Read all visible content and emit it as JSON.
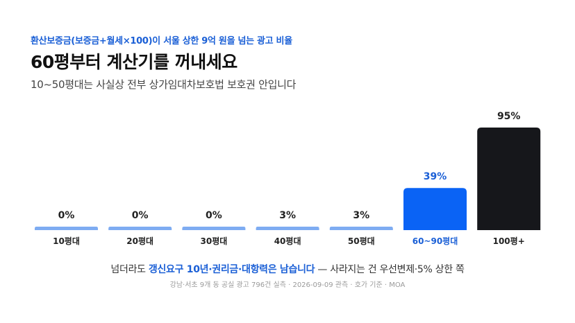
{
  "header": {
    "kicker": "환산보증금(보증금+월세×100)이 서울 상한 9억 원을 넘는 광고 비율",
    "title": "60평부터 계산기를 꺼내세요",
    "subtitle": "10~50평대는 사실상 전부 상가임대차보호법 보호권 안입니다"
  },
  "chart_data": {
    "type": "bar",
    "categories": [
      "10평대",
      "20평대",
      "30평대",
      "40평대",
      "50평대",
      "60~90평대",
      "100평+"
    ],
    "values": [
      0,
      0,
      0,
      3,
      3,
      39,
      95
    ],
    "value_labels": [
      "0%",
      "0%",
      "0%",
      "3%",
      "3%",
      "39%",
      "95%"
    ],
    "ylim": [
      0,
      100
    ],
    "grid": false,
    "colors": {
      "default": "#7eacf2",
      "highlight": "#0a63f5",
      "max": "#16171b",
      "highlight_text": "#1a5fd6",
      "default_text": "#222222"
    },
    "highlight_index": 5,
    "max_index": 6
  },
  "footer": {
    "note_prefix": "넘더라도 ",
    "note_highlight": "갱신요구 10년·권리금·대항력은 남습니다",
    "note_suffix": " — 사라지는 건 우선변제·5% 상한 쪽",
    "source": "강남·서초 9개 동 공실 광고 796건 실측 · 2026-09-09 관측 · 호가 기준 · MOA"
  }
}
